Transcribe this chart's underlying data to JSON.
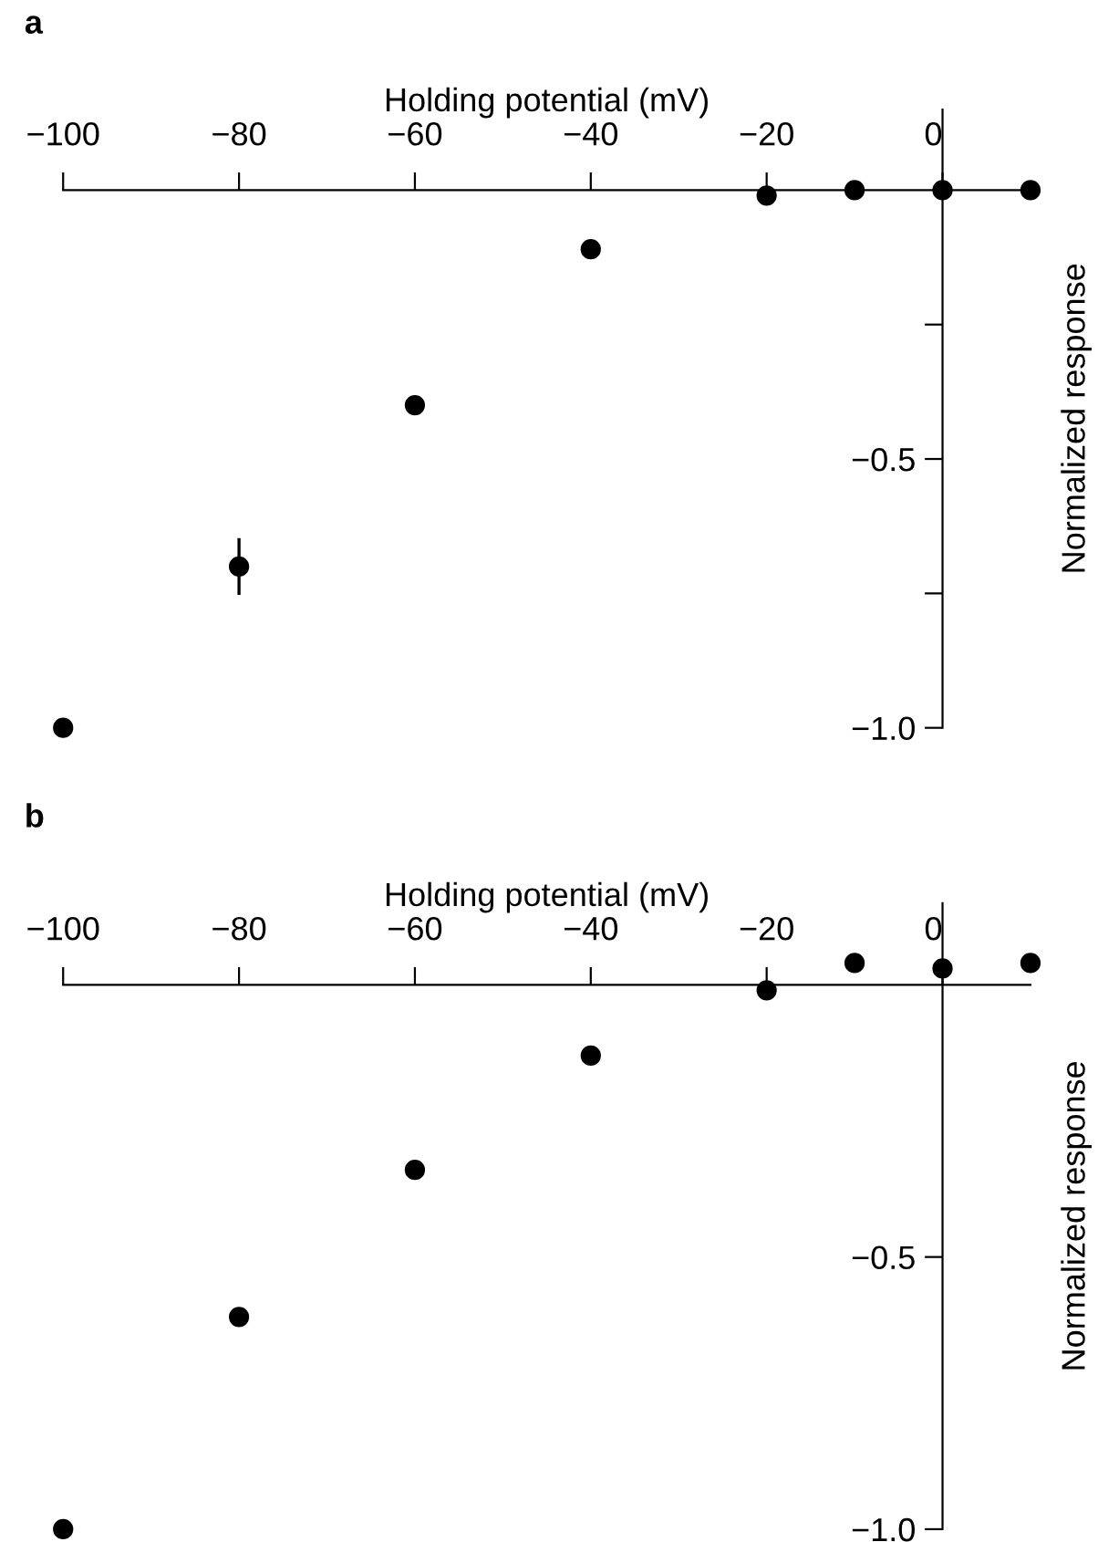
{
  "chart_data": [
    {
      "type": "scatter",
      "title": "a",
      "xlabel": "Holding potential (mV)",
      "ylabel": "Normalized response",
      "x": [
        -100,
        -80,
        -60,
        -40,
        -20,
        -10,
        0,
        10
      ],
      "series": [
        {
          "color": "#000000",
          "values": [
            -1.0,
            -0.7,
            -0.4,
            -0.11,
            -0.01,
            0.0,
            0.0,
            0.0
          ],
          "errors": [
            null,
            [
              -0.75,
              -0.65
            ],
            null,
            null,
            null,
            null,
            null,
            null
          ]
        }
      ],
      "xlim": [
        -100,
        10
      ],
      "ylim": [
        -1.0,
        0.15
      ],
      "xticks": [
        -100,
        -80,
        -60,
        -40,
        -20,
        0
      ],
      "yticks": [
        {
          "value": -0.25,
          "label": null
        },
        -0.5,
        {
          "value": -0.75,
          "label": null
        },
        {
          "value": -1.0,
          "label": "−1.0"
        }
      ],
      "marker": "circle",
      "grid": false,
      "legend": false
    },
    {
      "type": "scatter",
      "title": "b",
      "xlabel": "Holding potential (mV)",
      "ylabel": "Normalized response",
      "x": [
        -100,
        -80,
        -60,
        -40,
        -20,
        -10,
        0,
        10
      ],
      "series": [
        {
          "color": "#000000",
          "values": [
            -1.0,
            -0.61,
            -0.34,
            -0.13,
            -0.01,
            0.04,
            0.03,
            0.04
          ]
        }
      ],
      "xlim": [
        -100,
        10
      ],
      "ylim": [
        -1.0,
        0.15
      ],
      "xticks": [
        -100,
        -80,
        -60,
        -40,
        -20,
        0
      ],
      "yticks": [
        -0.5,
        {
          "value": -1.0,
          "label": "−1.0"
        }
      ],
      "marker": "circle",
      "grid": false,
      "legend": false
    }
  ]
}
